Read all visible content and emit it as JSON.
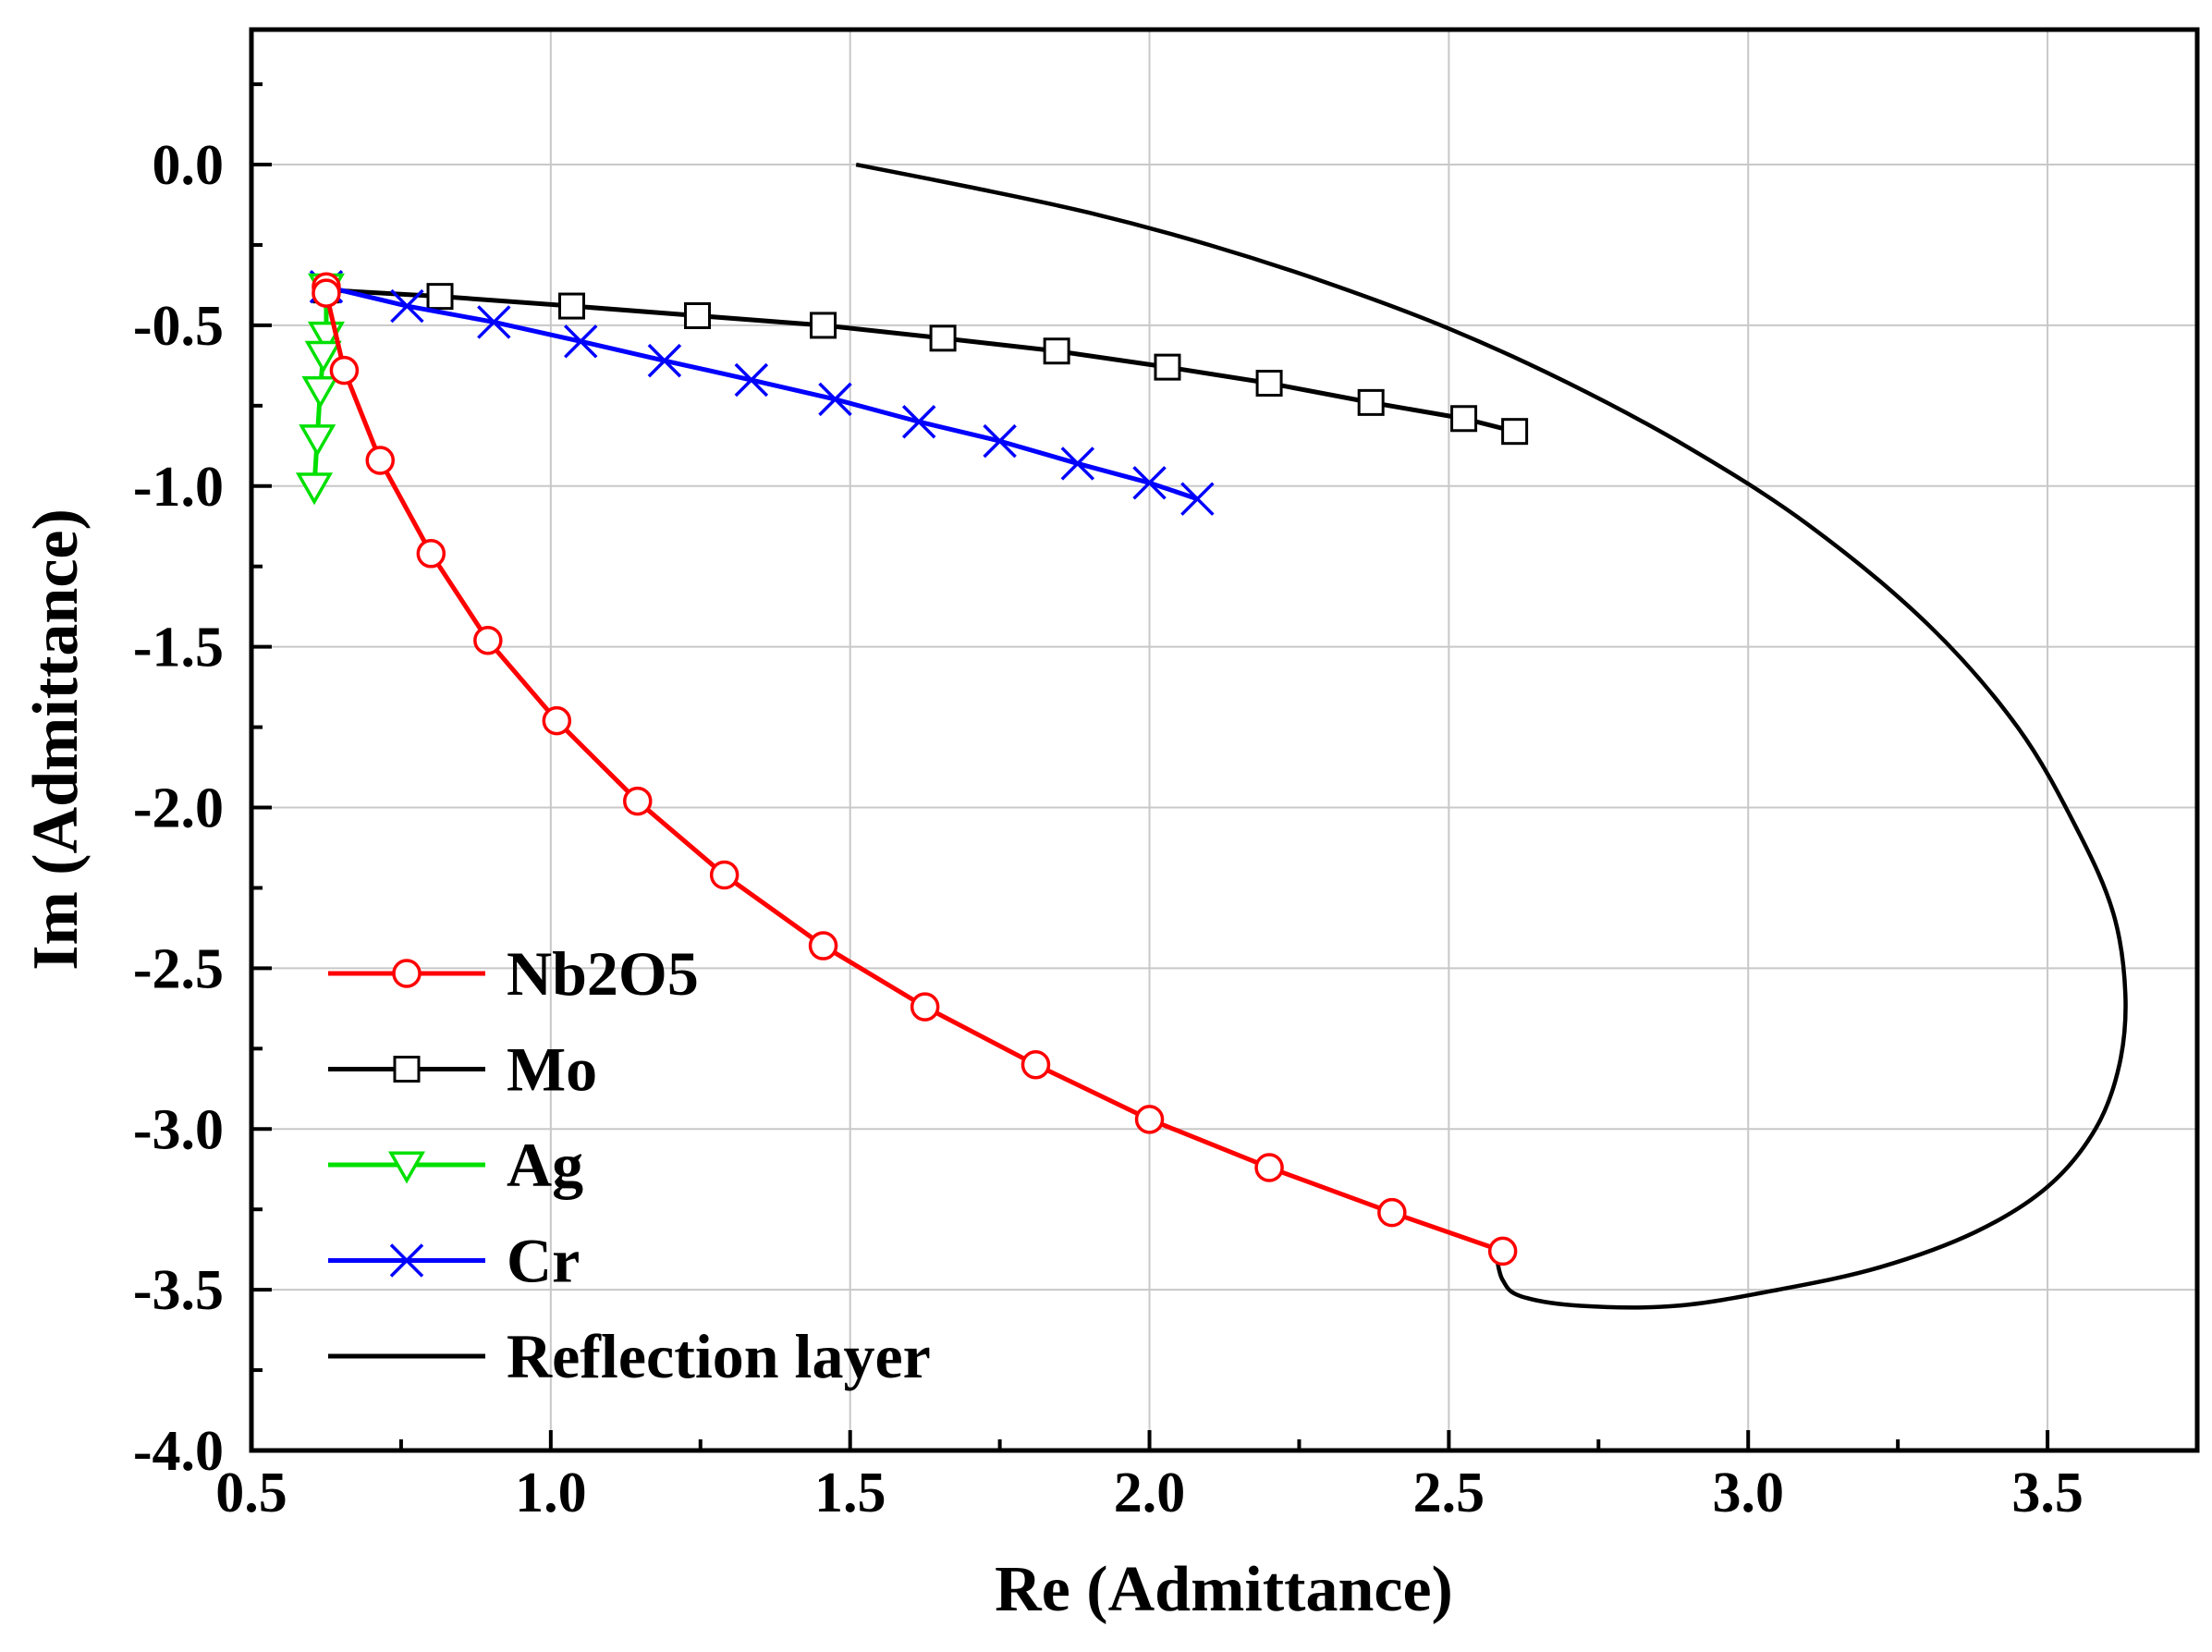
{
  "chart_data": {
    "type": "line",
    "title": "",
    "xlabel": "Re (Admittance)",
    "ylabel": "Im (Admittance)",
    "xlim": [
      0.5,
      3.75
    ],
    "ylim": [
      -4.0,
      0.42
    ],
    "grid": true,
    "legend_position": "bottom-left",
    "x_ticks": [
      0.5,
      1.0,
      1.5,
      2.0,
      2.5,
      3.0,
      3.5
    ],
    "x_tick_labels": [
      "0.5",
      "1.0",
      "1.5",
      "2.0",
      "2.5",
      "3.0",
      "3.5"
    ],
    "y_ticks": [
      0.0,
      -0.5,
      -1.0,
      -1.5,
      -2.0,
      -2.5,
      -3.0,
      -3.5,
      -4.0
    ],
    "y_tick_labels": [
      "0.0",
      "-0.5",
      "-1.0",
      "-1.5",
      "-2.0",
      "-2.5",
      "-3.0",
      "-3.5",
      "-4.0"
    ],
    "series": [
      {
        "name": "Nb2O5",
        "color": "#ff0000",
        "marker": "circle",
        "x": [
          0.625,
          0.625,
          0.655,
          0.715,
          0.8,
          0.895,
          1.01,
          1.145,
          1.29,
          1.455,
          1.625,
          1.81,
          2.0,
          2.2,
          2.405,
          2.59
        ],
        "y": [
          -0.38,
          -0.4,
          -0.64,
          -0.92,
          -1.21,
          -1.48,
          -1.73,
          -1.98,
          -2.21,
          -2.43,
          -2.62,
          -2.8,
          -2.97,
          -3.12,
          -3.26,
          -3.38
        ]
      },
      {
        "name": "Mo",
        "color": "#000000",
        "marker": "square",
        "x": [
          0.625,
          0.815,
          1.035,
          1.245,
          1.455,
          1.655,
          1.845,
          2.03,
          2.2,
          2.37,
          2.525,
          2.61
        ],
        "y": [
          -0.39,
          -0.41,
          -0.44,
          -0.47,
          -0.5,
          -0.54,
          -0.58,
          -0.63,
          -0.68,
          -0.74,
          -0.79,
          -0.83
        ]
      },
      {
        "name": "Ag",
        "color": "#00e000",
        "marker": "triangle-down",
        "x": [
          0.625,
          0.625,
          0.62,
          0.615,
          0.61,
          0.605
        ],
        "y": [
          -0.38,
          -0.53,
          -0.59,
          -0.7,
          -0.85,
          -1.0
        ]
      },
      {
        "name": "Cr",
        "color": "#0000ff",
        "marker": "x",
        "x": [
          0.625,
          0.76,
          0.905,
          1.05,
          1.19,
          1.335,
          1.475,
          1.615,
          1.75,
          1.88,
          2.0,
          2.08
        ],
        "y": [
          -0.38,
          -0.44,
          -0.49,
          -0.55,
          -0.61,
          -0.67,
          -0.73,
          -0.8,
          -0.86,
          -0.93,
          -0.99,
          -1.04
        ]
      },
      {
        "name": "Reflection layer",
        "color": "#000000",
        "marker": "none",
        "x": [
          1.51,
          1.7,
          1.9,
          2.1,
          2.3,
          2.5,
          2.7,
          2.9,
          3.1,
          3.3,
          3.45,
          3.55,
          3.61,
          3.63,
          3.62,
          3.58,
          3.5,
          3.38,
          3.22,
          3.05,
          2.88,
          2.72,
          2.62,
          2.59,
          2.58
        ],
        "y": [
          0.0,
          -0.07,
          -0.15,
          -0.25,
          -0.37,
          -0.51,
          -0.68,
          -0.88,
          -1.12,
          -1.43,
          -1.75,
          -2.07,
          -2.33,
          -2.58,
          -2.8,
          -3.0,
          -3.18,
          -3.32,
          -3.43,
          -3.5,
          -3.55,
          -3.55,
          -3.52,
          -3.47,
          -3.4
        ]
      }
    ]
  }
}
